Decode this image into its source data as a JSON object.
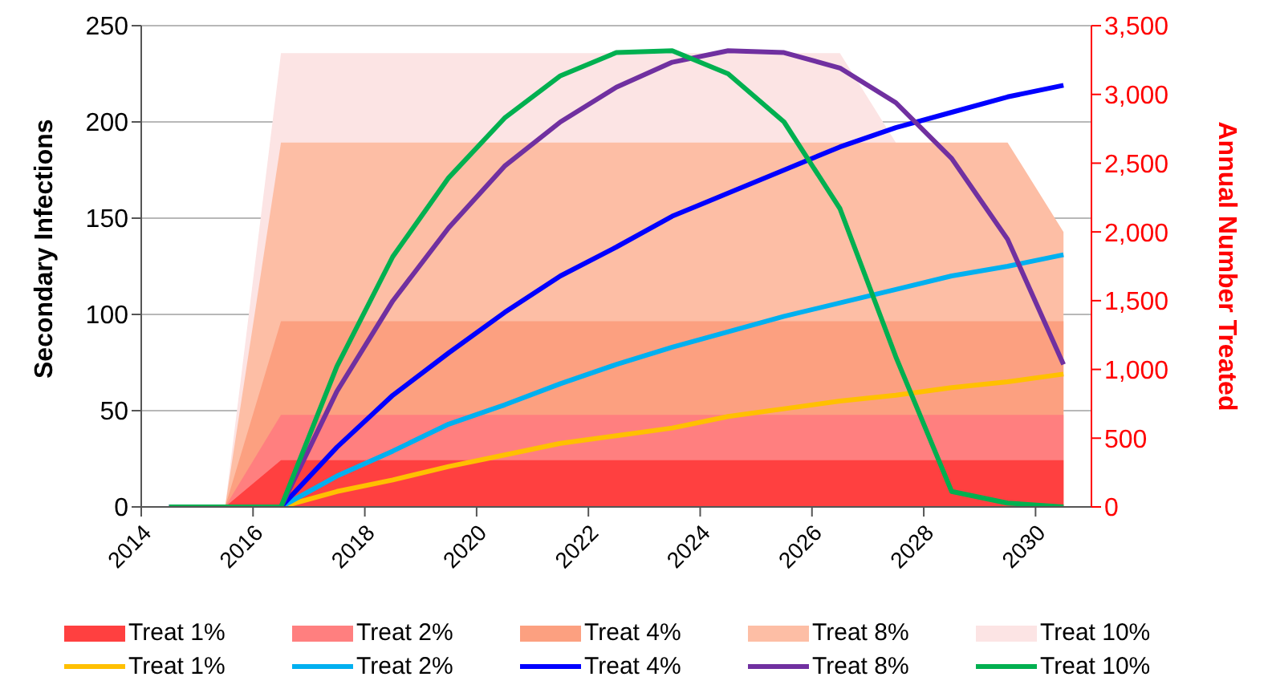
{
  "chart_data": {
    "type": "line",
    "ylabel": "Secondary Infections",
    "y2label": "Annual Number Treated",
    "x": [
      2014.5,
      2015.5,
      2016.5,
      2017.5,
      2018.5,
      2019.5,
      2020.5,
      2021.5,
      2022.5,
      2023.5,
      2024.5,
      2025.5,
      2026.5,
      2027.5,
      2028.5,
      2029.5,
      2030.5
    ],
    "xlim": [
      2014,
      2031
    ],
    "xticks": [
      2014,
      2016,
      2018,
      2020,
      2022,
      2024,
      2026,
      2028,
      2030
    ],
    "ylim": [
      0,
      250
    ],
    "yticks": [
      0,
      50,
      100,
      150,
      200,
      250
    ],
    "y2lim": [
      0,
      3500
    ],
    "y2ticks": [
      0,
      500,
      {
        "value": 1000,
        "label": "1,000"
      },
      {
        "value": 1500,
        "label": "1,500"
      },
      {
        "value": 2000,
        "label": "2,000"
      },
      {
        "value": 2500,
        "label": "2,500"
      },
      {
        "value": 3000,
        "label": "3,000"
      },
      {
        "value": 3500,
        "label": "3,500"
      }
    ],
    "grid": "y",
    "legend": "bottom",
    "marker": "none",
    "line_style": "solid",
    "series": [
      {
        "name": "Treat 1%",
        "type": "area",
        "axis": "y2",
        "color": "#ff4040",
        "values": [
          0,
          0,
          340,
          340,
          340,
          340,
          340,
          340,
          340,
          340,
          340,
          340,
          340,
          340,
          340,
          340,
          340
        ]
      },
      {
        "name": "Treat 2%",
        "type": "area",
        "axis": "y2",
        "color": "#ff7f7f",
        "values": [
          0,
          0,
          670,
          670,
          670,
          670,
          670,
          670,
          670,
          670,
          670,
          670,
          670,
          670,
          670,
          670,
          670
        ]
      },
      {
        "name": "Treat 4%",
        "type": "area",
        "axis": "y2",
        "color": "#fca080",
        "values": [
          0,
          0,
          1350,
          1350,
          1350,
          1350,
          1350,
          1350,
          1350,
          1350,
          1350,
          1350,
          1350,
          1350,
          1350,
          1350,
          1350
        ]
      },
      {
        "name": "Treat 8%",
        "type": "area",
        "axis": "y2",
        "color": "#fdbea5",
        "values": [
          0,
          0,
          2650,
          2650,
          2650,
          2650,
          2650,
          2650,
          2650,
          2650,
          2650,
          2650,
          2650,
          2650,
          2650,
          2650,
          2000
        ]
      },
      {
        "name": "Treat 10%",
        "type": "area",
        "axis": "y2",
        "color": "#fce4e4",
        "values": [
          0,
          0,
          3300,
          3300,
          3300,
          3300,
          3300,
          3300,
          3300,
          3300,
          3300,
          3300,
          3300,
          2650,
          null,
          null,
          null
        ]
      },
      {
        "name": "Treat 1%",
        "color": "#ffc000",
        "values": [
          0,
          0,
          0,
          8,
          14,
          21,
          27,
          33,
          37,
          41,
          47,
          51,
          55,
          58,
          62,
          65,
          69
        ]
      },
      {
        "name": "Treat 2%",
        "color": "#00b0f0",
        "values": [
          0,
          0,
          0,
          16,
          29,
          43,
          53,
          64,
          74,
          83,
          91,
          99,
          106,
          113,
          120,
          125,
          131
        ]
      },
      {
        "name": "Treat 4%",
        "color": "#0000ff",
        "values": [
          0,
          0,
          0,
          31,
          58,
          80,
          101,
          120,
          135,
          151,
          163,
          175,
          187,
          197,
          205,
          213,
          219
        ]
      },
      {
        "name": "Treat 8%",
        "color": "#7030a0",
        "values": [
          0,
          0,
          0,
          60,
          107,
          145,
          177,
          200,
          218,
          231,
          237,
          236,
          228,
          210,
          181,
          139,
          74
        ]
      },
      {
        "name": "Treat 10%",
        "color": "#00b050",
        "values": [
          0,
          0,
          0,
          73,
          130,
          171,
          202,
          224,
          236,
          237,
          225,
          200,
          155,
          78,
          8,
          2,
          0
        ]
      }
    ]
  }
}
